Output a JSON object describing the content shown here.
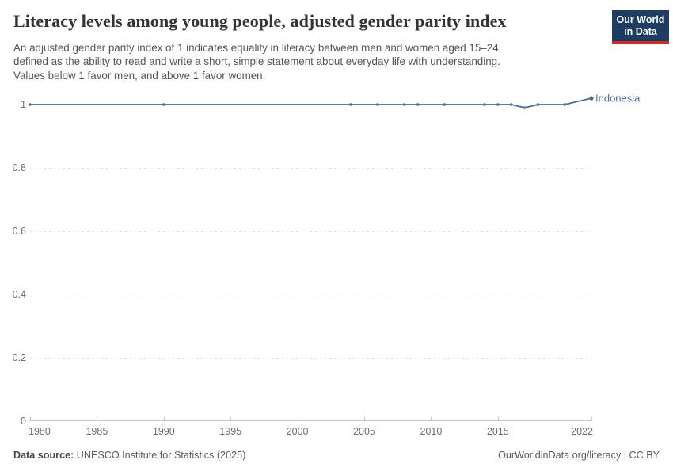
{
  "header": {
    "title": "Literacy levels among young people, adjusted gender parity index",
    "subtitle_lines": [
      "An adjusted gender parity index of 1 indicates equality in literacy between men and women aged 15–24,",
      "defined as the ability to read and write a short, simple statement about everyday life with understanding.",
      "Values below 1 favor men, and above 1 favor women."
    ],
    "logo": {
      "line1": "Our World",
      "line2": "in Data",
      "bg_color": "#1d3d63",
      "accent_color": "#cf2e27"
    }
  },
  "chart_data": {
    "type": "line",
    "title": "Literacy levels among young people, adjusted gender parity index",
    "xlabel": "",
    "ylabel": "",
    "xlim": [
      1980,
      2022
    ],
    "ylim": [
      0,
      1.05
    ],
    "x_ticks": [
      1980,
      1985,
      1990,
      1995,
      2000,
      2005,
      2010,
      2015,
      2022
    ],
    "y_ticks": [
      0,
      0.2,
      0.4,
      0.6,
      0.8,
      1
    ],
    "grid": "dashed horizontal gridlines",
    "legend": "entity label at right end of line",
    "colors": {
      "gridline": "#dedede",
      "axis": "#c8c8c8",
      "tick_label": "#6e6e6e"
    },
    "series": [
      {
        "name": "Indonesia",
        "color": "#4C6A9C",
        "points": [
          {
            "year": 1980,
            "value": 1.0
          },
          {
            "year": 1990,
            "value": 1.0
          },
          {
            "year": 2004,
            "value": 1.0
          },
          {
            "year": 2006,
            "value": 1.0
          },
          {
            "year": 2008,
            "value": 1.0
          },
          {
            "year": 2009,
            "value": 1.0
          },
          {
            "year": 2011,
            "value": 1.0
          },
          {
            "year": 2014,
            "value": 1.0
          },
          {
            "year": 2015,
            "value": 1.0
          },
          {
            "year": 2016,
            "value": 1.0
          },
          {
            "year": 2017,
            "value": 0.99
          },
          {
            "year": 2018,
            "value": 1.0
          },
          {
            "year": 2020,
            "value": 1.0
          },
          {
            "year": 2022,
            "value": 1.02
          }
        ]
      }
    ]
  },
  "footer": {
    "source_label": "Data source:",
    "source_text": "UNESCO Institute for Statistics (2025)",
    "rights_text": "OurWorldinData.org/literacy | CC BY"
  }
}
